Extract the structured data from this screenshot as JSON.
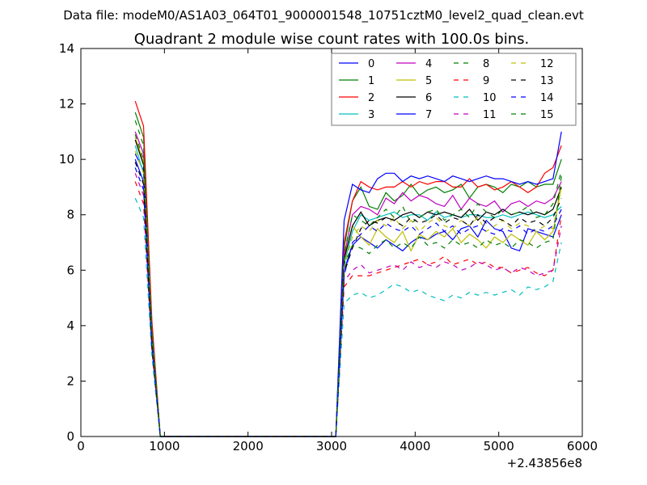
{
  "figure": {
    "suptitle": "Data file: modeM0/AS1A03_064T01_9000001548_10751cztM0_level2_quad_clean.evt"
  },
  "chart_data": {
    "type": "line",
    "title": "Quadrant 2 module wise count rates with 100.0s bins.",
    "xlabel": "",
    "ylabel": "",
    "x_offset_label": "+2.43856e8",
    "xlim": [
      0,
      6000
    ],
    "ylim": [
      0,
      14
    ],
    "xticks": [
      0,
      1000,
      2000,
      3000,
      4000,
      5000,
      6000
    ],
    "xtick_labels": [
      "0",
      "1000",
      "2000",
      "3000",
      "4000",
      "5000",
      "6000"
    ],
    "yticks": [
      0,
      2,
      4,
      6,
      8,
      10,
      12,
      14
    ],
    "ytick_labels": [
      "0",
      "2",
      "4",
      "6",
      "8",
      "10",
      "12",
      "14"
    ],
    "grid": false,
    "legend_position": "top-right",
    "legend_columns": 4,
    "colors": {
      "blue": "#0000ff",
      "green": "#008000",
      "red": "#ff0000",
      "cyan": "#00bfbf",
      "magenta": "#bf00bf",
      "olive": "#bfbf00",
      "black": "#000000"
    },
    "x": [
      650,
      750,
      850,
      950,
      1050,
      1150,
      1250,
      1350,
      1450,
      1550,
      1650,
      1750,
      1850,
      1950,
      2050,
      2150,
      2250,
      2350,
      2450,
      2550,
      2650,
      2750,
      2850,
      2950,
      3050,
      3150,
      3250,
      3350,
      3450,
      3550,
      3650,
      3750,
      3850,
      3950,
      4050,
      4150,
      4250,
      4350,
      4450,
      4550,
      4650,
      4750,
      4850,
      4950,
      5050,
      5150,
      5250,
      5350,
      5450,
      5550,
      5650,
      5750
    ],
    "series": [
      {
        "name": "0",
        "color": "#0000ff",
        "dash": "solid",
        "values": [
          10.2,
          9.6,
          3.6,
          0,
          0,
          0,
          0,
          0,
          0,
          0,
          0,
          0,
          0,
          0,
          0,
          0,
          0,
          0,
          0,
          0,
          0,
          0,
          0,
          0,
          0,
          6.0,
          6.9,
          7.2,
          7.0,
          6.8,
          7.1,
          6.9,
          6.7,
          7.0,
          7.2,
          7.1,
          7.3,
          7.4,
          7.1,
          7.5,
          7.6,
          7.2,
          7.8,
          7.5,
          7.4,
          6.8,
          6.7,
          7.5,
          7.4,
          7.3,
          7.2,
          8.0
        ]
      },
      {
        "name": "1",
        "color": "#008000",
        "dash": "solid",
        "values": [
          11.7,
          10.8,
          4.0,
          0,
          0,
          0,
          0,
          0,
          0,
          0,
          0,
          0,
          0,
          0,
          0,
          0,
          0,
          0,
          0,
          0,
          0,
          0,
          0,
          0,
          0,
          6.8,
          8.5,
          9.0,
          8.3,
          8.2,
          8.8,
          8.5,
          8.7,
          9.1,
          8.7,
          8.9,
          9.0,
          8.8,
          8.9,
          9.1,
          8.6,
          9.0,
          9.1,
          9.0,
          8.8,
          9.1,
          9.0,
          9.2,
          9.0,
          9.1,
          9.1,
          10.0
        ]
      },
      {
        "name": "2",
        "color": "#ff0000",
        "dash": "solid",
        "values": [
          12.1,
          11.2,
          4.2,
          0,
          0,
          0,
          0,
          0,
          0,
          0,
          0,
          0,
          0,
          0,
          0,
          0,
          0,
          0,
          0,
          0,
          0,
          0,
          0,
          0,
          0,
          7.0,
          8.5,
          9.2,
          9.0,
          8.9,
          9.0,
          9.0,
          9.2,
          9.0,
          9.2,
          9.1,
          9.2,
          9.2,
          9.0,
          9.0,
          9.3,
          9.0,
          9.1,
          8.9,
          9.0,
          9.2,
          9.0,
          8.8,
          9.0,
          9.5,
          9.7,
          10.5
        ]
      },
      {
        "name": "3",
        "color": "#00bfbf",
        "dash": "solid",
        "values": [
          10.5,
          9.5,
          3.5,
          0,
          0,
          0,
          0,
          0,
          0,
          0,
          0,
          0,
          0,
          0,
          0,
          0,
          0,
          0,
          0,
          0,
          0,
          0,
          0,
          0,
          0,
          6.2,
          7.4,
          8.0,
          7.8,
          7.9,
          8.0,
          8.1,
          7.9,
          8.0,
          8.0,
          7.8,
          8.1,
          7.9,
          8.0,
          7.9,
          8.0,
          8.0,
          7.9,
          7.9,
          8.0,
          7.9,
          8.0,
          8.1,
          8.0,
          7.9,
          8.0,
          8.3
        ]
      },
      {
        "name": "4",
        "color": "#bf00bf",
        "dash": "solid",
        "values": [
          11.0,
          10.2,
          3.8,
          0,
          0,
          0,
          0,
          0,
          0,
          0,
          0,
          0,
          0,
          0,
          0,
          0,
          0,
          0,
          0,
          0,
          0,
          0,
          0,
          0,
          0,
          6.5,
          8.0,
          8.3,
          8.2,
          8.0,
          8.6,
          8.4,
          8.8,
          8.5,
          8.7,
          8.6,
          8.4,
          8.3,
          8.7,
          8.2,
          8.6,
          8.4,
          8.3,
          8.5,
          8.1,
          8.4,
          8.5,
          8.3,
          8.5,
          8.4,
          8.6,
          9.2
        ]
      },
      {
        "name": "5",
        "color": "#bfbf00",
        "dash": "solid",
        "values": [
          10.8,
          9.9,
          3.7,
          0,
          0,
          0,
          0,
          0,
          0,
          0,
          0,
          0,
          0,
          0,
          0,
          0,
          0,
          0,
          0,
          0,
          0,
          0,
          0,
          0,
          0,
          6.3,
          7.6,
          7.2,
          6.9,
          7.5,
          7.2,
          7.0,
          7.4,
          6.7,
          7.3,
          7.1,
          7.4,
          7.2,
          7.5,
          7.0,
          7.3,
          7.1,
          6.8,
          7.2,
          7.0,
          7.3,
          7.1,
          6.9,
          7.4,
          7.1,
          7.4,
          9.0
        ]
      },
      {
        "name": "6",
        "color": "#000000",
        "dash": "solid",
        "values": [
          10.7,
          9.8,
          3.6,
          0,
          0,
          0,
          0,
          0,
          0,
          0,
          0,
          0,
          0,
          0,
          0,
          0,
          0,
          0,
          0,
          0,
          0,
          0,
          0,
          0,
          0,
          6.4,
          7.6,
          8.1,
          7.6,
          7.8,
          7.9,
          7.8,
          8.0,
          8.1,
          7.9,
          8.1,
          8.0,
          8.1,
          8.0,
          7.9,
          8.2,
          7.8,
          8.1,
          8.0,
          8.2,
          8.0,
          8.1,
          8.0,
          8.1,
          8.0,
          8.2,
          9.0
        ]
      },
      {
        "name": "7",
        "color": "#0000ff",
        "dash": "solid",
        "values": [
          10.0,
          9.2,
          3.4,
          0,
          0,
          0,
          0,
          0,
          0,
          0,
          0,
          0,
          0,
          0,
          0,
          0,
          0,
          0,
          0,
          0,
          0,
          0,
          0,
          0,
          0,
          7.8,
          9.1,
          8.9,
          8.8,
          9.3,
          9.5,
          9.5,
          9.2,
          9.4,
          9.3,
          9.4,
          9.3,
          9.2,
          9.4,
          9.3,
          9.2,
          9.3,
          9.4,
          9.3,
          9.3,
          9.2,
          9.1,
          9.2,
          9.1,
          9.2,
          9.3,
          11.0
        ]
      },
      {
        "name": "8",
        "color": "#008000",
        "dash": "dashed",
        "values": [
          11.4,
          10.5,
          3.9,
          0,
          0,
          0,
          0,
          0,
          0,
          0,
          0,
          0,
          0,
          0,
          0,
          0,
          0,
          0,
          0,
          0,
          0,
          0,
          0,
          0,
          0,
          6.6,
          8.0,
          7.8,
          7.6,
          7.9,
          8.2,
          7.9,
          8.3,
          7.7,
          7.9,
          8.1,
          8.2,
          7.8,
          8.0,
          8.2,
          7.9,
          8.4,
          8.1,
          7.9,
          8.2,
          8.0,
          8.1,
          8.3,
          7.9,
          8.0,
          8.4,
          9.6
        ]
      },
      {
        "name": "9",
        "color": "#ff0000",
        "dash": "dashed",
        "values": [
          9.2,
          8.4,
          3.1,
          0,
          0,
          0,
          0,
          0,
          0,
          0,
          0,
          0,
          0,
          0,
          0,
          0,
          0,
          0,
          0,
          0,
          0,
          0,
          0,
          0,
          0,
          5.4,
          5.8,
          5.8,
          5.8,
          5.9,
          6.0,
          6.1,
          6.2,
          6.3,
          6.4,
          6.2,
          6.3,
          6.5,
          6.2,
          6.3,
          6.4,
          6.2,
          6.3,
          6.1,
          6.1,
          5.9,
          6.0,
          6.1,
          5.9,
          5.8,
          6.0,
          8.0
        ]
      },
      {
        "name": "10",
        "color": "#00bfbf",
        "dash": "dashed",
        "values": [
          8.6,
          7.9,
          2.9,
          0,
          0,
          0,
          0,
          0,
          0,
          0,
          0,
          0,
          0,
          0,
          0,
          0,
          0,
          0,
          0,
          0,
          0,
          0,
          0,
          0,
          0,
          4.8,
          5.1,
          5.2,
          5.0,
          5.1,
          5.3,
          5.5,
          5.4,
          5.2,
          5.3,
          5.1,
          5.0,
          4.9,
          5.1,
          5.0,
          5.2,
          5.1,
          5.2,
          5.1,
          5.2,
          5.3,
          5.1,
          5.4,
          5.3,
          5.4,
          5.6,
          7.0
        ]
      },
      {
        "name": "11",
        "color": "#bf00bf",
        "dash": "dashed",
        "values": [
          9.5,
          8.7,
          3.2,
          0,
          0,
          0,
          0,
          0,
          0,
          0,
          0,
          0,
          0,
          0,
          0,
          0,
          0,
          0,
          0,
          0,
          0,
          0,
          0,
          0,
          0,
          5.6,
          6.0,
          6.2,
          5.9,
          6.0,
          6.1,
          6.2,
          6.0,
          6.3,
          6.1,
          6.2,
          6.1,
          6.3,
          6.2,
          6.0,
          6.1,
          6.3,
          6.2,
          6.0,
          6.1,
          5.9,
          6.1,
          6.0,
          5.8,
          5.9,
          6.0,
          7.6
        ]
      },
      {
        "name": "12",
        "color": "#bfbf00",
        "dash": "dashed",
        "values": [
          10.3,
          9.5,
          3.5,
          0,
          0,
          0,
          0,
          0,
          0,
          0,
          0,
          0,
          0,
          0,
          0,
          0,
          0,
          0,
          0,
          0,
          0,
          0,
          0,
          0,
          0,
          6.1,
          7.2,
          7.6,
          7.4,
          7.8,
          7.6,
          7.9,
          7.5,
          7.8,
          7.4,
          7.7,
          7.9,
          7.6,
          7.5,
          7.8,
          7.6,
          7.9,
          7.4,
          7.6,
          7.8,
          7.5,
          7.7,
          7.6,
          7.4,
          7.6,
          7.5,
          9.1
        ]
      },
      {
        "name": "13",
        "color": "#000000",
        "dash": "dashed",
        "values": [
          9.9,
          9.1,
          3.3,
          0,
          0,
          0,
          0,
          0,
          0,
          0,
          0,
          0,
          0,
          0,
          0,
          0,
          0,
          0,
          0,
          0,
          0,
          0,
          0,
          0,
          0,
          5.9,
          6.8,
          7.5,
          7.8,
          7.7,
          7.9,
          7.8,
          7.6,
          7.9,
          7.7,
          7.8,
          8.0,
          7.7,
          7.9,
          7.8,
          7.6,
          8.0,
          7.7,
          7.9,
          7.8,
          7.6,
          7.9,
          7.7,
          7.8,
          7.6,
          7.9,
          8.6
        ]
      },
      {
        "name": "14",
        "color": "#0000ff",
        "dash": "dashed",
        "values": [
          9.7,
          8.9,
          3.3,
          0,
          0,
          0,
          0,
          0,
          0,
          0,
          0,
          0,
          0,
          0,
          0,
          0,
          0,
          0,
          0,
          0,
          0,
          0,
          0,
          0,
          0,
          5.8,
          7.0,
          7.3,
          7.6,
          7.4,
          7.7,
          7.5,
          7.4,
          7.6,
          7.3,
          7.5,
          7.7,
          7.4,
          7.6,
          7.3,
          7.5,
          7.6,
          7.4,
          7.3,
          7.5,
          7.4,
          7.6,
          7.3,
          7.5,
          7.4,
          7.6,
          8.2
        ]
      },
      {
        "name": "15",
        "color": "#008000",
        "dash": "dashed",
        "values": [
          10.9,
          10.0,
          3.7,
          0,
          0,
          0,
          0,
          0,
          0,
          0,
          0,
          0,
          0,
          0,
          0,
          0,
          0,
          0,
          0,
          0,
          0,
          0,
          0,
          0,
          0,
          6.2,
          6.9,
          6.8,
          6.6,
          6.9,
          7.1,
          6.8,
          7.0,
          6.8,
          7.2,
          6.9,
          7.0,
          6.8,
          7.1,
          6.9,
          7.0,
          6.8,
          7.1,
          6.9,
          7.0,
          6.8,
          7.1,
          7.0,
          6.8,
          7.0,
          7.1,
          9.4
        ]
      }
    ]
  }
}
